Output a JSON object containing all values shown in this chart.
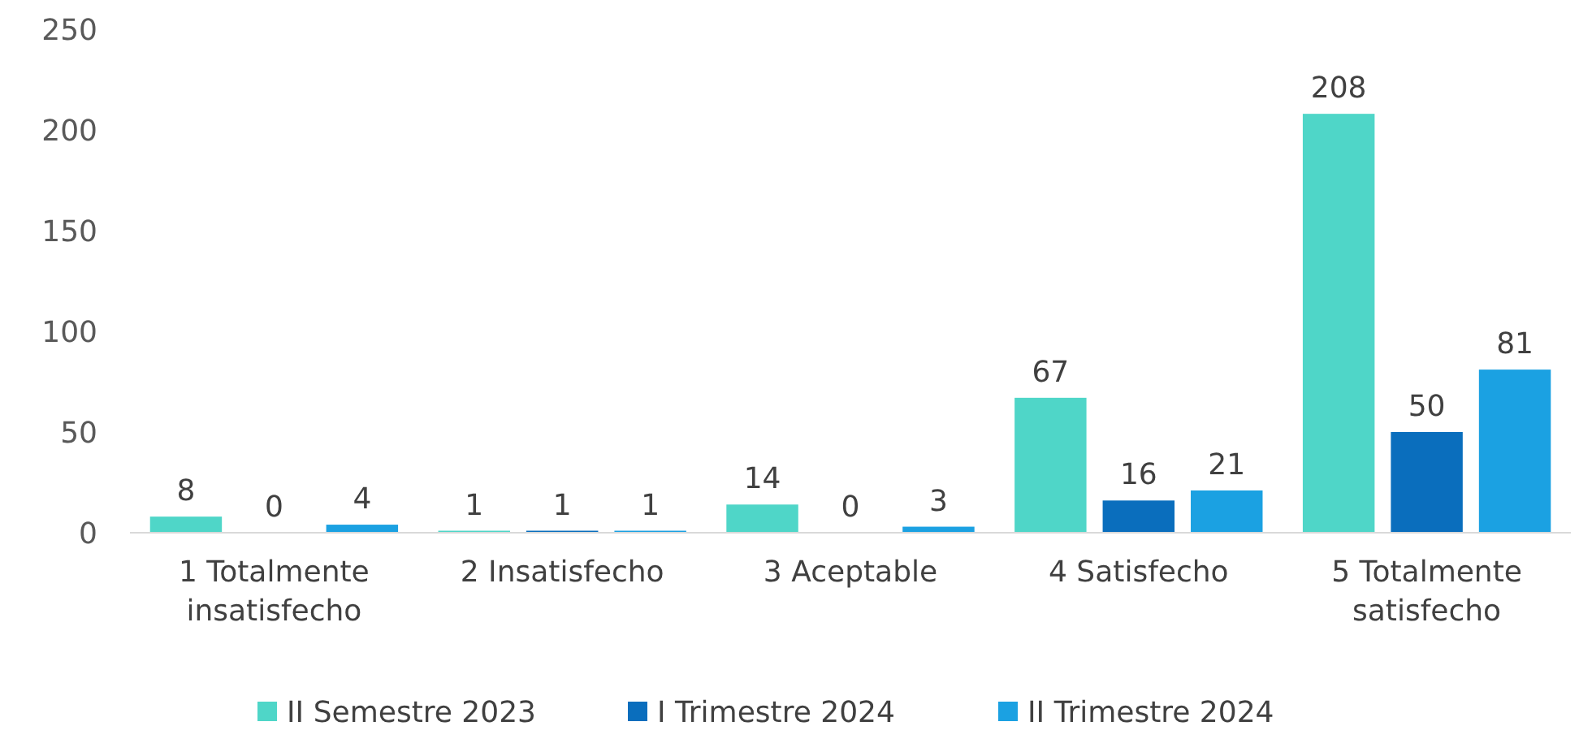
{
  "chart_data": {
    "type": "bar",
    "categories": [
      "1 Totalmente insatisfecho",
      "2 Insatisfecho",
      "3 Aceptable",
      "4 Satisfecho",
      "5 Totalmente satisfecho"
    ],
    "series": [
      {
        "name": "II Semestre 2023",
        "color": "#4fd6c8",
        "values": [
          8,
          1,
          14,
          67,
          208
        ]
      },
      {
        "name": "I Trimestre 2024",
        "color": "#0a6ebd",
        "values": [
          0,
          1,
          0,
          16,
          50
        ]
      },
      {
        "name": "II Trimestre 2024",
        "color": "#1ba1e2",
        "values": [
          4,
          1,
          3,
          21,
          81
        ]
      }
    ],
    "ylim": [
      0,
      250
    ],
    "yticks": [
      0,
      50,
      100,
      150,
      200,
      250
    ],
    "data_labels": true,
    "legend": "bottom",
    "grid": false
  }
}
